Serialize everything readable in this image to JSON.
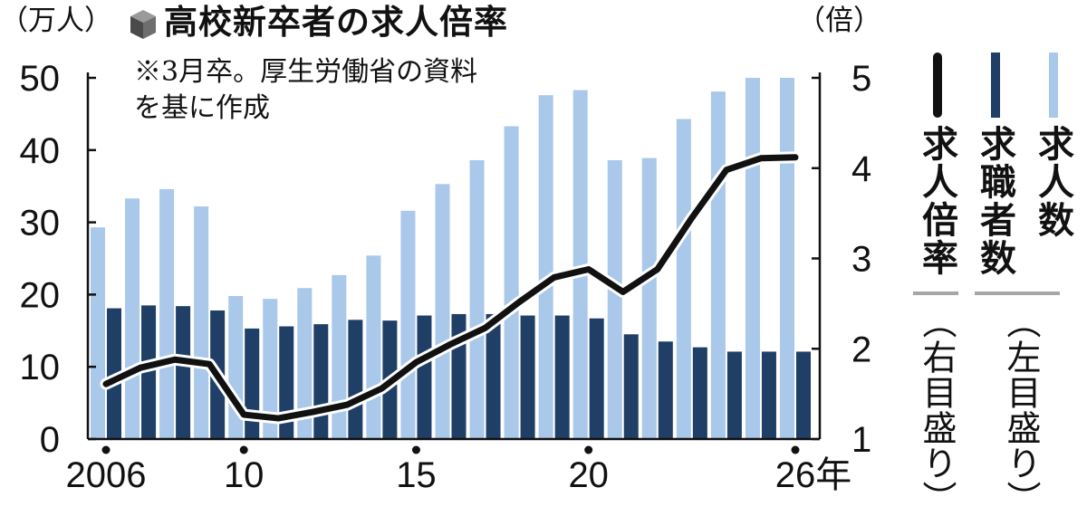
{
  "header": {
    "left_unit": "（万人）",
    "right_unit": "（倍）",
    "title": "高校新卒者の求人倍率",
    "note": "※3月卒。厚生労働省の資料を基に作成"
  },
  "legend": [
    {
      "label": "求人倍率",
      "sub": "（右目盛り）",
      "color": "#111111",
      "kind": "line"
    },
    {
      "label": "求職者数",
      "sub": "（左目盛り）",
      "color": "#1f3f66",
      "kind": "bar"
    },
    {
      "label": "求人数",
      "sub": "",
      "color": "#a9c8ea",
      "kind": "bar"
    }
  ],
  "chart_data": {
    "type": "bar",
    "x": [
      2006,
      2007,
      2008,
      2009,
      2010,
      2011,
      2012,
      2013,
      2014,
      2015,
      2016,
      2017,
      2018,
      2019,
      2020,
      2021,
      2022,
      2023,
      2024,
      2025,
      2026
    ],
    "x_tick_labels": [
      "2006",
      "10",
      "15",
      "20",
      "26年"
    ],
    "x_tick_positions": [
      2006,
      2010,
      2015,
      2020,
      2026
    ],
    "left_axis": {
      "ylim": [
        0,
        50
      ],
      "ticks": [
        "0",
        "10",
        "20",
        "30",
        "40",
        "50"
      ]
    },
    "right_axis": {
      "ylim": [
        1,
        5
      ],
      "ticks": [
        "1",
        "2",
        "3",
        "4",
        "5"
      ]
    },
    "series": [
      {
        "name": "求人数",
        "axis": "left",
        "type": "bar",
        "color": "#a9c8ea",
        "values": [
          29.3,
          33.3,
          34.6,
          32.2,
          19.8,
          19.4,
          20.9,
          22.7,
          25.4,
          31.6,
          35.3,
          38.6,
          43.3,
          47.6,
          48.3,
          38.6,
          38.9,
          44.3,
          48.1,
          50.0,
          50.0
        ]
      },
      {
        "name": "求職者数",
        "axis": "left",
        "type": "bar",
        "color": "#1f3f66",
        "values": [
          18.1,
          18.5,
          18.4,
          17.8,
          15.3,
          15.6,
          15.9,
          16.5,
          16.4,
          17.1,
          17.3,
          17.3,
          17.1,
          17.1,
          16.7,
          14.5,
          13.5,
          12.7,
          12.1,
          12.1,
          12.1
        ]
      },
      {
        "name": "求人倍率",
        "axis": "right",
        "type": "line",
        "color": "#111111",
        "values": [
          1.61,
          1.79,
          1.88,
          1.83,
          1.27,
          1.23,
          1.3,
          1.38,
          1.56,
          1.85,
          2.05,
          2.23,
          2.52,
          2.79,
          2.88,
          2.63,
          2.88,
          3.45,
          3.98,
          4.11,
          4.12
        ]
      }
    ]
  }
}
